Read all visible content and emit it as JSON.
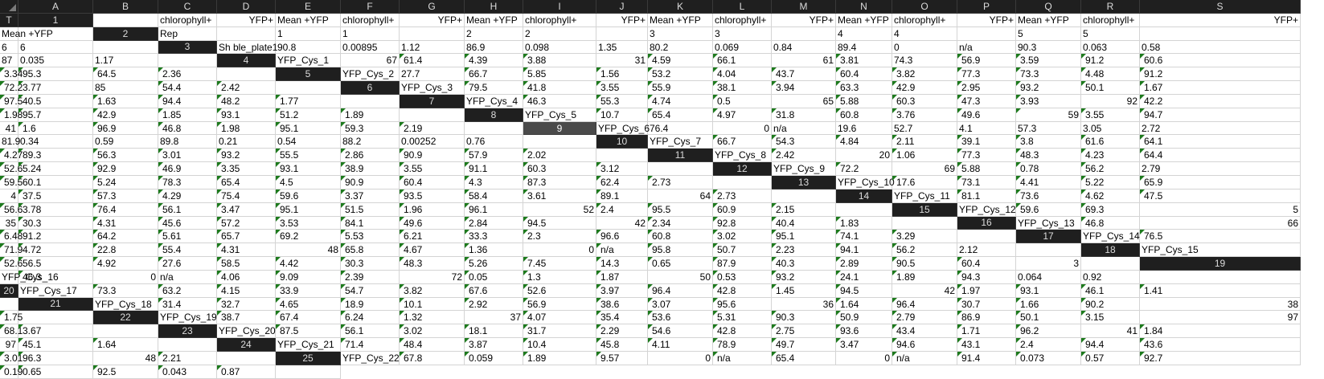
{
  "columns": [
    "A",
    "B",
    "C",
    "D",
    "E",
    "F",
    "G",
    "H",
    "I",
    "J",
    "K",
    "L",
    "M",
    "N",
    "O",
    "P",
    "Q",
    "R",
    "S",
    "T"
  ],
  "selected_row": 9,
  "colors": {
    "header_bg": "#1f1f1f",
    "header_text": "#dcdcdc",
    "grid": "#d4d4d4",
    "error_marker": "#1d7a1d"
  },
  "rows": [
    [
      "",
      "chlorophyll+",
      "YFP+",
      "Mean +YFP",
      "chlorophyll+",
      "YFP+",
      "Mean +YFP",
      "chlorophyll+",
      "YFP+",
      "Mean +YFP",
      "chlorophyll+",
      "YFP+",
      "Mean +YFP",
      "chlorophyll+",
      "YFP+",
      "Mean +YFP",
      "chlorophyll+",
      "YFP+",
      "Mean +YFP",
      ""
    ],
    [
      "Rep",
      "",
      "1",
      "1",
      "",
      "2",
      "2",
      "",
      "3",
      "3",
      "",
      "4",
      "4",
      "",
      "5",
      "5",
      "",
      "6",
      "6",
      ""
    ],
    [
      "Sh ble_plate1",
      "90.8",
      "0.00895",
      "1.12",
      "86.9",
      "0.098",
      "1.35",
      "80.2",
      "0.069",
      "0.84",
      "89.4",
      "0",
      "n/a",
      "90.3",
      "0.063",
      "0.58",
      "87",
      "0.035",
      "1.17",
      ""
    ],
    [
      "YFP_Cys_1",
      "67",
      "61.4",
      "4.39",
      "3.88",
      "31",
      "4.59",
      "66.1",
      "61",
      "3.81",
      "74.3",
      "56.9",
      "3.59",
      "91.2",
      "60.6",
      "3.34",
      "95.3",
      "64.5",
      "2.36",
      ""
    ],
    [
      "YFP_Cys_2",
      "27.7",
      "66.7",
      "5.85",
      "1.56",
      "53.2",
      "4.04",
      "43.7",
      "60.4",
      "3.82",
      "77.3",
      "73.3",
      "4.48",
      "91.2",
      "72.2",
      "3.77",
      "85",
      "54.4",
      "2.42",
      ""
    ],
    [
      "YFP_Cys_3",
      "79.5",
      "41.8",
      "3.55",
      "55.9",
      "38.1",
      "3.94",
      "63.3",
      "42.9",
      "2.95",
      "93.2",
      "50.1",
      "1.67",
      "97.5",
      "40.5",
      "1.63",
      "94.4",
      "48.2",
      "1.77",
      ""
    ],
    [
      "YFP_Cys_4",
      "46.3",
      "55.3",
      "4.74",
      "0.5",
      "65",
      "5.88",
      "60.3",
      "47.3",
      "3.93",
      "92",
      "42.2",
      "1.98",
      "95.7",
      "42.9",
      "1.85",
      "93.1",
      "51.2",
      "1.89",
      ""
    ],
    [
      "YFP_Cys_5",
      "10.7",
      "65.4",
      "4.97",
      "31.8",
      "60.8",
      "3.76",
      "49.6",
      "59",
      "3.55",
      "94.7",
      "41",
      "1.6",
      "96.9",
      "46.8",
      "1.98",
      "95.1",
      "59.3",
      "2.19",
      ""
    ],
    [
      "YFP_Cys_6",
      "76.4",
      "0",
      "n/a",
      "19.6",
      "52.7",
      "4.1",
      "57.3",
      "3.05",
      "2.72",
      "81.9",
      "0.34",
      "0.59",
      "89.8",
      "0.21",
      "0.54",
      "88.2",
      "0.00252",
      "0.76",
      ""
    ],
    [
      "YFP_Cys_7",
      "66.7",
      "54.3",
      "4.84",
      "2.11",
      "39.1",
      "3.8",
      "61.6",
      "64.1",
      "4.27",
      "89.3",
      "56.3",
      "3.01",
      "93.2",
      "55.5",
      "2.86",
      "90.9",
      "57.9",
      "2.02",
      ""
    ],
    [
      "YFP_Cys_8",
      "2.42",
      "20",
      "1.06",
      "77.3",
      "48.3",
      "4.23",
      "64.4",
      "52.6",
      "5.24",
      "92.9",
      "46.9",
      "3.35",
      "93.1",
      "38.9",
      "3.55",
      "91.1",
      "60.3",
      "3.12",
      ""
    ],
    [
      "YFP_Cys_9",
      "72.2",
      "69",
      "5.88",
      "0.78",
      "56.2",
      "2.79",
      "59.5",
      "60.1",
      "5.24",
      "78.3",
      "65.4",
      "4.5",
      "90.9",
      "60.4",
      "4.3",
      "87.3",
      "62.4",
      "2.73",
      ""
    ],
    [
      "YFP_Cys_10",
      "17.6",
      "73.1",
      "4.41",
      "5.22",
      "65.9",
      "4",
      "37.5",
      "57.3",
      "4.29",
      "75.4",
      "59.6",
      "3.37",
      "93.5",
      "58.4",
      "3.61",
      "89.1",
      "64",
      "2.73",
      ""
    ],
    [
      "YFP_Cys_11",
      "81.1",
      "73.6",
      "4.62",
      "47.5",
      "56.6",
      "3.78",
      "76.4",
      "56.1",
      "3.47",
      "95.1",
      "51.5",
      "1.96",
      "96.1",
      "52",
      "2.4",
      "95.5",
      "60.9",
      "2.15",
      ""
    ],
    [
      "YFP_Cys_12",
      "59.6",
      "69.3",
      "5",
      "35",
      "30.3",
      "4.31",
      "45.6",
      "57.2",
      "3.53",
      "84.1",
      "49.6",
      "2.84",
      "94.5",
      "42",
      "2.34",
      "92.8",
      "40.4",
      "1.83",
      ""
    ],
    [
      "YFP_Cys_13",
      "46.8",
      "66",
      "6.48",
      "91.2",
      "64.2",
      "5.61",
      "65.7",
      "69.2",
      "5.53",
      "6.21",
      "33.3",
      "2.3",
      "96.6",
      "60.8",
      "3.02",
      "95.1",
      "74.1",
      "3.29",
      ""
    ],
    [
      "YFP_Cys_14",
      "76.5",
      "71.9",
      "4.72",
      "22.8",
      "55.4",
      "4.31",
      "48",
      "65.8",
      "4.67",
      "1.36",
      "0",
      "n/a",
      "95.8",
      "50.7",
      "2.23",
      "94.1",
      "56.2",
      "2.12",
      ""
    ],
    [
      "YFP_Cys_15",
      "52.6",
      "56.5",
      "4.92",
      "27.6",
      "58.5",
      "4.42",
      "30.3",
      "48.3",
      "5.26",
      "7.45",
      "14.3",
      "0.65",
      "87.9",
      "40.3",
      "2.89",
      "90.5",
      "60.4",
      "3",
      ""
    ],
    [
      "YFP_Cys_16",
      "46.3",
      "0",
      "n/a",
      "4.06",
      "9.09",
      "2.39",
      "72",
      "0.05",
      "1.3",
      "1.87",
      "50",
      "0.53",
      "93.2",
      "24.1",
      "1.89",
      "94.3",
      "0.064",
      "0.92",
      ""
    ],
    [
      "YFP_Cys_17",
      "73.3",
      "63.2",
      "4.15",
      "33.9",
      "54.7",
      "3.82",
      "67.6",
      "52.6",
      "3.97",
      "96.4",
      "42.8",
      "1.45",
      "94.5",
      "42",
      "1.97",
      "93.1",
      "46.1",
      "1.41",
      ""
    ],
    [
      "YFP_Cys_18",
      "31.4",
      "32.7",
      "4.65",
      "18.9",
      "10.1",
      "2.92",
      "56.9",
      "38.6",
      "3.07",
      "95.6",
      "36",
      "1.64",
      "96.4",
      "30.7",
      "1.66",
      "90.2",
      "38",
      "1.75",
      ""
    ],
    [
      "YFP_Cys_19",
      "38.7",
      "67.4",
      "6.24",
      "1.32",
      "37",
      "4.07",
      "35.4",
      "53.6",
      "5.31",
      "90.3",
      "50.9",
      "2.79",
      "86.9",
      "50.1",
      "3.15",
      "97",
      "68.1",
      "3.67",
      ""
    ],
    [
      "YFP_Cys_20",
      "87.5",
      "56.1",
      "3.02",
      "18.1",
      "31.7",
      "2.29",
      "54.6",
      "42.8",
      "2.75",
      "93.6",
      "43.4",
      "1.71",
      "96.2",
      "41",
      "1.84",
      "97",
      "45.1",
      "1.64",
      ""
    ],
    [
      "YFP_Cys_21",
      "71.4",
      "48.4",
      "3.87",
      "10.4",
      "45.8",
      "4.11",
      "78.9",
      "49.7",
      "3.47",
      "94.6",
      "43.1",
      "2.4",
      "94.4",
      "43.6",
      "3.01",
      "96.3",
      "48",
      "2.21",
      ""
    ],
    [
      "YFP_Cys_22",
      "67.8",
      "0.059",
      "1.89",
      "9.57",
      "0",
      "n/a",
      "65.4",
      "0",
      "n/a",
      "91.4",
      "0.073",
      "0.57",
      "92.7",
      "0.19",
      "0.65",
      "92.5",
      "0.043",
      "0.87",
      ""
    ]
  ],
  "numeric_right": {
    "1": [
      2,
      5,
      8,
      11,
      14,
      17
    ],
    "2": [],
    "4": [
      1,
      5,
      8
    ],
    "7": [
      5,
      10
    ],
    "8": [
      8,
      11
    ],
    "9": [
      2
    ],
    "11": [
      2
    ],
    "12": [
      2
    ],
    "13": [
      6,
      17
    ],
    "14": [
      14
    ],
    "15": [
      3,
      4,
      14
    ],
    "16": [
      2
    ],
    "17": [
      7,
      11
    ],
    "18": [
      18
    ],
    "19": [
      2,
      7,
      11
    ],
    "20": [
      14
    ],
    "21": [
      11,
      17
    ],
    "22": [
      5,
      16
    ],
    "23": [
      14,
      16
    ],
    "24": [
      17
    ],
    "25": [
      5,
      8
    ]
  },
  "triangles": {
    "2": [],
    "3": [],
    "4": [
      2,
      3,
      4,
      6,
      7,
      9,
      11,
      12,
      13,
      14,
      15,
      16,
      17,
      18
    ],
    "5": [
      2,
      3,
      4,
      5,
      6,
      7,
      8,
      9,
      10,
      11,
      12,
      13,
      14,
      15,
      17,
      18
    ],
    "6": [
      1,
      2,
      3,
      4,
      5,
      6,
      7,
      8,
      9,
      10,
      11,
      12,
      13,
      14,
      15,
      16,
      17,
      18
    ],
    "7": [
      1,
      2,
      3,
      4,
      6,
      7,
      8,
      9,
      11,
      12,
      13,
      14,
      15,
      16,
      17,
      18
    ],
    "8": [
      1,
      2,
      3,
      4,
      5,
      6,
      7,
      8,
      9,
      10,
      12,
      13,
      14,
      15,
      16,
      17,
      18
    ],
    "9": [],
    "10": [
      1,
      2,
      3,
      4,
      5,
      6,
      7,
      8,
      9,
      10,
      11,
      12,
      13,
      14,
      15,
      16,
      17,
      18
    ],
    "11": [
      1,
      3,
      4,
      5,
      6,
      7,
      8,
      9,
      10,
      11,
      12,
      13,
      14,
      15,
      16,
      17,
      18
    ],
    "12": [
      1,
      3,
      4,
      5,
      7,
      8,
      9,
      10,
      11,
      12,
      13,
      14,
      15,
      16,
      17,
      18
    ],
    "13": [
      1,
      2,
      3,
      4,
      5,
      7,
      8,
      9,
      10,
      11,
      12,
      13,
      14,
      15,
      16,
      18
    ],
    "14": [
      1,
      2,
      3,
      4,
      5,
      6,
      7,
      8,
      9,
      10,
      11,
      12,
      13,
      15,
      16,
      17,
      18
    ],
    "15": [
      1,
      2,
      5,
      6,
      7,
      8,
      9,
      10,
      11,
      12,
      13,
      15,
      16,
      17,
      18
    ],
    "16": [
      1,
      3,
      4,
      5,
      6,
      7,
      8,
      9,
      10,
      11,
      12,
      13,
      14,
      15,
      16,
      17,
      18
    ],
    "17": [
      1,
      2,
      3,
      4,
      5,
      6,
      8,
      9,
      10,
      12,
      13,
      14,
      15,
      16,
      17
    ],
    "18": [
      1,
      2,
      3,
      4,
      5,
      6,
      7,
      8,
      9,
      10,
      11,
      12,
      13,
      14,
      15,
      16,
      17
    ],
    "19": [
      1,
      4,
      5,
      6,
      8,
      9,
      10,
      12,
      13,
      14,
      15,
      16
    ],
    "20": [
      1,
      2,
      3,
      4,
      5,
      6,
      7,
      8,
      9,
      10,
      11,
      12,
      13,
      15,
      16,
      17,
      18
    ],
    "21": [
      1,
      2,
      3,
      4,
      5,
      6,
      7,
      8,
      9,
      10,
      12,
      13,
      14,
      15,
      16,
      18
    ],
    "22": [
      1,
      2,
      3,
      4,
      6,
      7,
      8,
      9,
      10,
      11,
      12,
      13,
      14,
      15,
      17,
      18
    ],
    "23": [
      1,
      2,
      3,
      4,
      5,
      6,
      7,
      8,
      9,
      10,
      11,
      12,
      13,
      15,
      17,
      18
    ],
    "24": [
      1,
      2,
      3,
      4,
      5,
      6,
      7,
      8,
      9,
      10,
      11,
      12,
      13,
      14,
      15,
      16,
      18
    ],
    "25": [
      1,
      2,
      3,
      4,
      6,
      7,
      9,
      10,
      11,
      12,
      13,
      14,
      15,
      16,
      17,
      18
    ]
  }
}
